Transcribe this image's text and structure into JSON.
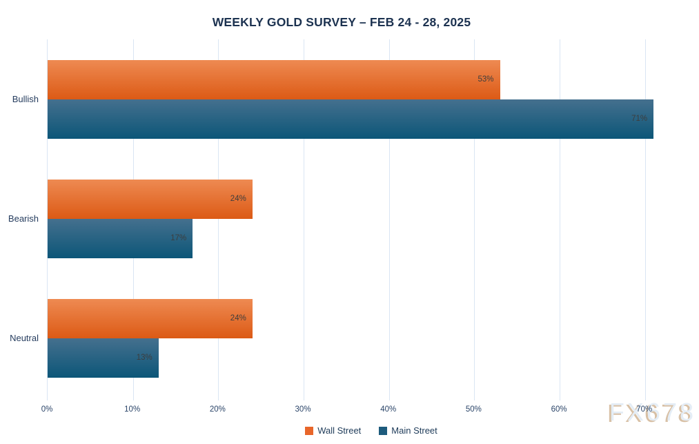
{
  "title": "WEEKLY GOLD SURVEY – FEB 24 - 28, 2025",
  "watermark": "FX678",
  "chart_data": {
    "type": "bar",
    "orientation": "horizontal",
    "title": "WEEKLY GOLD SURVEY – FEB 24 - 28, 2025",
    "categories": [
      "Bullish",
      "Bearish",
      "Neutral"
    ],
    "series": [
      {
        "name": "Wall Street",
        "values": [
          53,
          24,
          24
        ],
        "color_top": "#ee8a52",
        "color_bottom": "#dc5a15",
        "legend_color": "#e8662a"
      },
      {
        "name": "Main Street",
        "values": [
          71,
          17,
          13
        ],
        "color_top": "#45708e",
        "color_bottom": "#0c5678",
        "legend_color": "#1d5b7d"
      }
    ],
    "value_suffix": "%",
    "data_labels": [
      "53%",
      "71%",
      "24%",
      "17%",
      "24%",
      "13%"
    ],
    "x_tick_labels": [
      "0%",
      "10%",
      "20%",
      "30%",
      "40%",
      "50%",
      "60%",
      "70%"
    ],
    "x_tick_values": [
      0,
      10,
      20,
      30,
      40,
      50,
      60,
      70
    ],
    "xlim": [
      0,
      76
    ],
    "xlabel": "",
    "ylabel": "",
    "grid": true,
    "legend_position": "bottom-center"
  },
  "colors": {
    "background": "#ffffff",
    "title_text": "#1c3250",
    "axis_text": "#2a4468",
    "category_text": "#253c5e",
    "data_label_text": "#3d3d3d",
    "grid_line": "#d9e5f3",
    "legend_text": "#1d3a58",
    "watermark_fill": "#e4edf6",
    "watermark_shadow": "#d8c0a5"
  }
}
